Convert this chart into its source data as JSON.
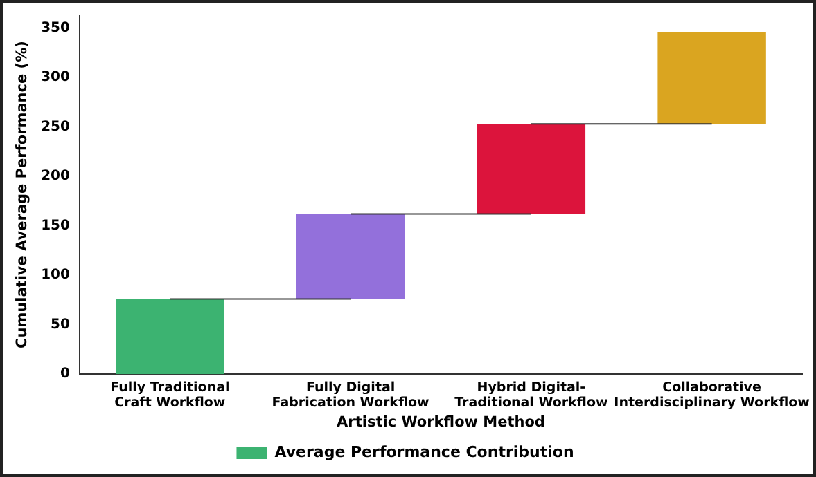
{
  "chart_data": {
    "type": "bar",
    "xlabel": "Artistic Workflow Method",
    "ylabel": "Cumulative Average Performance (%)",
    "categories": [
      "Fully Traditional\nCraft Workflow",
      "Fully Digital\nFabrication Workflow",
      "Hybrid Digital-\nTraditional Workflow",
      "Collaborative\nInterdisciplinary Workflow"
    ],
    "series": [
      {
        "name": "Average Performance Contribution",
        "color": "#3cb371",
        "colors": [
          "#3cb371",
          "#9370db",
          "#dc143c",
          "#daa520"
        ],
        "values": [
          76,
          86,
          91,
          93
        ],
        "base": [
          0,
          76,
          162,
          253
        ]
      },
      {
        "type": "line",
        "color": "#333333",
        "values": [
          76,
          76,
          null,
          null
        ]
      },
      {
        "type": "line",
        "color": "#333333",
        "values": [
          null,
          162,
          162,
          null
        ]
      },
      {
        "type": "line",
        "color": "#333333",
        "values": [
          null,
          null,
          253,
          253
        ]
      }
    ],
    "ylim": [
      0,
      363
    ],
    "yticks": [
      0,
      50,
      100,
      150,
      200,
      250,
      300,
      350
    ],
    "grid": false,
    "legend": "bottom",
    "marker": "none"
  }
}
